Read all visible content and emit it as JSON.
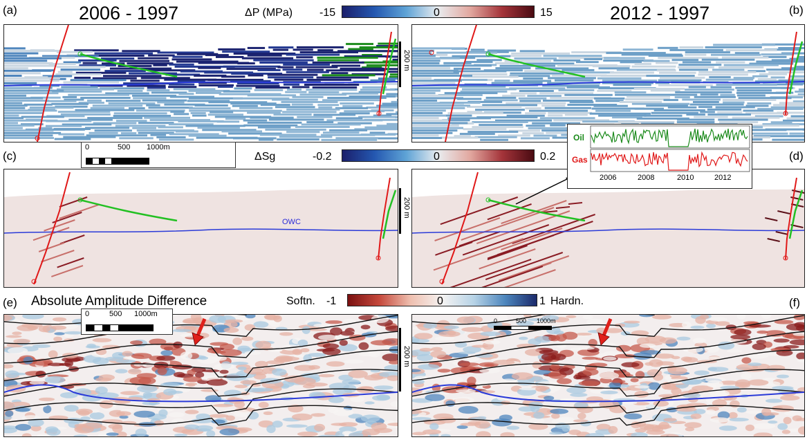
{
  "labels": {
    "a": "(a)",
    "b": "(b)",
    "c": "(c)",
    "d": "(d)",
    "e": "(e)",
    "f": "(f)"
  },
  "titles": {
    "left": "2006 - 1997",
    "right": "2012 - 1997",
    "ssg": "ΔSg",
    "amp": "Absolute Amplitude Difference"
  },
  "colorbars": {
    "pressure": {
      "title": "ΔP (MPa)",
      "min": "-15",
      "mid": "0",
      "max": "15",
      "colors": [
        "#1b1f6b",
        "#2457b0",
        "#5ea3d6",
        "#e9ecef",
        "#e2a8a0",
        "#a4343a",
        "#4a0b12"
      ]
    },
    "saturation": {
      "min": "-0.2",
      "mid": "0",
      "max": "0.2",
      "colors": [
        "#1b1f6b",
        "#2457b0",
        "#5ea3d6",
        "#e9ecef",
        "#e2a8a0",
        "#a4343a",
        "#4a0b12"
      ]
    },
    "amplitude": {
      "left_text": "Softn.",
      "min": "-1",
      "mid": "0",
      "max": "1",
      "right_text": "Hardn.",
      "colors": [
        "#7a1010",
        "#c5493c",
        "#efc0b0",
        "#f5f3f2",
        "#b7d3e6",
        "#4d86bd",
        "#1b2a6b"
      ]
    }
  },
  "scales": {
    "vertical": "200 m",
    "horizontal_ticks": [
      "0",
      "500",
      "1000m"
    ]
  },
  "annotations": {
    "owc": "OWC"
  },
  "inset": {
    "rows": [
      "Oil",
      "Gas"
    ],
    "years": [
      "2006",
      "2008",
      "2010",
      "2012"
    ],
    "colors": {
      "oil": "#1a8a1a",
      "gas": "#e01818"
    }
  },
  "colors": {
    "well_red": "#e01818",
    "well_green": "#22c022",
    "owc_blue": "#2a3ad8",
    "horizon_black": "#111111",
    "arrow_red": "#e0201a"
  }
}
